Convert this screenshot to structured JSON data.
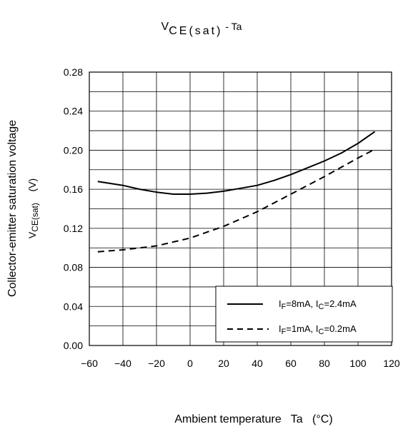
{
  "chart_data": {
    "type": "line",
    "title": {
      "main": "V",
      "sub": "CE(sat)",
      "tail": " - Ta"
    },
    "xlabel": "Ambient temperature   Ta   (°C)",
    "ylabel": "Collector-emitter saturation voltage",
    "ylabel2": {
      "main": "V",
      "sub": "CE(sat)",
      "unit": "    (V)"
    },
    "xlim": [
      -60,
      120
    ],
    "ylim": [
      0,
      0.28
    ],
    "x_ticks": [
      "−60",
      "−40",
      "−20",
      "0",
      "20",
      "40",
      "60",
      "80",
      "100",
      "120"
    ],
    "y_ticks": [
      "0.00",
      "0.04",
      "0.08",
      "0.12",
      "0.16",
      "0.20",
      "0.24",
      "0.28"
    ],
    "grid": true,
    "legend_position": "bottom-right",
    "series": [
      {
        "legend": {
          "a": "I",
          "as": "F",
          "b": "=8mA, I",
          "bs": "C",
          "c": "=2.4mA"
        },
        "style": "solid",
        "x": [
          -55,
          -40,
          -30,
          -20,
          -10,
          0,
          10,
          20,
          30,
          40,
          50,
          60,
          70,
          80,
          90,
          100,
          110
        ],
        "y": [
          0.168,
          0.164,
          0.16,
          0.157,
          0.155,
          0.155,
          0.156,
          0.158,
          0.161,
          0.164,
          0.169,
          0.175,
          0.182,
          0.189,
          0.197,
          0.207,
          0.219
        ]
      },
      {
        "legend": {
          "a": "I",
          "as": "F",
          "b": "=1mA, I",
          "bs": "C",
          "c": "=0.2mA"
        },
        "style": "dashed",
        "x": [
          -55,
          -40,
          -20,
          0,
          20,
          40,
          60,
          80,
          100,
          110
        ],
        "y": [
          0.096,
          0.098,
          0.102,
          0.11,
          0.122,
          0.137,
          0.155,
          0.173,
          0.192,
          0.201
        ]
      }
    ]
  }
}
